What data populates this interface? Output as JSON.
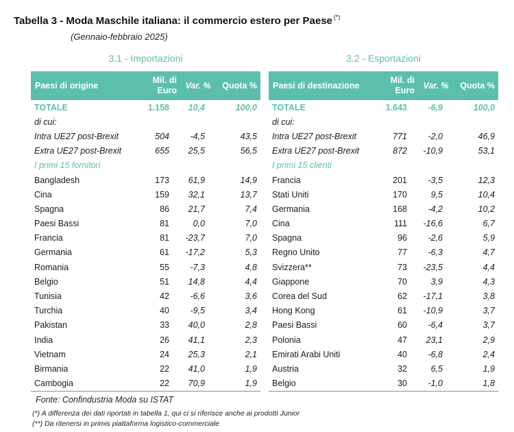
{
  "title": "Tabella 3 - Moda Maschile italiana: il commercio estero per Paese",
  "title_note": "(*)",
  "subtitle": "(Gennaio-febbraio 2025)",
  "colors": {
    "accent": "#5cbfae",
    "text": "#1a1a1a"
  },
  "import": {
    "section_title": "3.1 - Importazioni",
    "headers": [
      "Paesi di origine",
      "Mil. di Euro",
      "Var. %",
      "Quota %"
    ],
    "total": [
      "TOTALE",
      "1.158",
      "10,4",
      "100,0"
    ],
    "di_cui": "di cui:",
    "intra": [
      "Intra UE27 post-Brexit",
      "504",
      "-4,5",
      "43,5"
    ],
    "extra": [
      "Extra UE27 post-Brexit",
      "655",
      "25,5",
      "56,5"
    ],
    "group_label": "I primi 15 fornitori",
    "rows": [
      [
        "Bangladesh",
        "173",
        "61,9",
        "14,9"
      ],
      [
        "Cina",
        "159",
        "32,1",
        "13,7"
      ],
      [
        "Spagna",
        "86",
        "21,7",
        "7,4"
      ],
      [
        "Paesi Bassi",
        "81",
        "0,0",
        "7,0"
      ],
      [
        "Francia",
        "81",
        "-23,7",
        "7,0"
      ],
      [
        "Germania",
        "61",
        "-17,2",
        "5,3"
      ],
      [
        "Romania",
        "55",
        "-7,3",
        "4,8"
      ],
      [
        "Belgio",
        "51",
        "14,8",
        "4,4"
      ],
      [
        "Tunisia",
        "42",
        "-6,6",
        "3,6"
      ],
      [
        "Turchia",
        "40",
        "-9,5",
        "3,4"
      ],
      [
        "Pakistan",
        "33",
        "40,0",
        "2,8"
      ],
      [
        "India",
        "26",
        "41,1",
        "2,3"
      ],
      [
        "Vietnam",
        "24",
        "25,3",
        "2,1"
      ],
      [
        "Birmania",
        "22",
        "41,0",
        "1,9"
      ],
      [
        "Cambogia",
        "22",
        "70,9",
        "1,9"
      ]
    ]
  },
  "export": {
    "section_title": "3.2 - Esportazioni",
    "headers": [
      "Paesi di destinazione",
      "Mil. di Euro",
      "Var. %",
      "Quota %"
    ],
    "total": [
      "TOTALE",
      "1.643",
      "-6,9",
      "100,0"
    ],
    "di_cui": "di cui:",
    "intra": [
      "Intra UE27 post-Brexit",
      "771",
      "-2,0",
      "46,9"
    ],
    "extra": [
      "Extra UE27 post-Brexit",
      "872",
      "-10,9",
      "53,1"
    ],
    "group_label": "I primi 15 clienti",
    "rows": [
      [
        "Francia",
        "201",
        "-3,5",
        "12,3"
      ],
      [
        "Stati Uniti",
        "170",
        "9,5",
        "10,4"
      ],
      [
        "Germania",
        "168",
        "-4,2",
        "10,2"
      ],
      [
        "Cina",
        "111",
        "-16,6",
        "6,7"
      ],
      [
        "Spagna",
        "96",
        "-2,6",
        "5,9"
      ],
      [
        "Regno Unito",
        "77",
        "-6,3",
        "4,7"
      ],
      [
        "Svizzera**",
        "73",
        "-23,5",
        "4,4"
      ],
      [
        "Giappone",
        "70",
        "3,9",
        "4,3"
      ],
      [
        "Corea del Sud",
        "62",
        "-17,1",
        "3,8"
      ],
      [
        "Hong Kong",
        "61",
        "-10,9",
        "3,7"
      ],
      [
        "Paesi Bassi",
        "60",
        "-6,4",
        "3,7"
      ],
      [
        "Polonia",
        "47",
        "23,1",
        "2,9"
      ],
      [
        "Emirati Arabi Uniti",
        "40",
        "-6,8",
        "2,4"
      ],
      [
        "Austria",
        "32",
        "6,5",
        "1,9"
      ],
      [
        "Belgio",
        "30",
        "-1,0",
        "1,8"
      ]
    ]
  },
  "footer": {
    "fonte": "Fonte:  Confindustria Moda su ISTAT",
    "note1": "(*) A differenza dei dati riportati in tabella 1, qui ci si riferisce anche ai prodotti Junior",
    "note2": "(**) Da ritenersi in primis piattaforma logistico-commerciale"
  }
}
